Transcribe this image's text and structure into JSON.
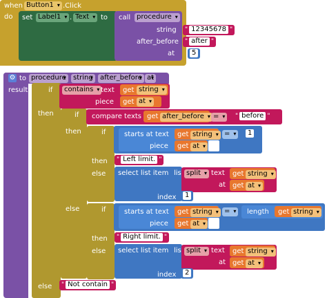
{
  "event": {
    "when": "when",
    "component": "Button1",
    "event_name": ".Click",
    "do": "do",
    "set": "set",
    "target": "Label1",
    "property": "Text",
    "to": "to",
    "call": "call",
    "procedure": "procedure",
    "arg1_label": "string",
    "arg1_value": "12345678",
    "arg2_label": "after_before",
    "arg2_value": "after",
    "arg3_label": "at",
    "arg3_value": "5"
  },
  "proc": {
    "to": "to",
    "name": "procedure",
    "param1": "string",
    "param2": "after_before",
    "param3": "at",
    "result": "result",
    "if": "if",
    "then": "then",
    "else": "else",
    "contains": "contains",
    "text": "text",
    "piece": "piece",
    "get": "get",
    "compare_texts": "compare texts",
    "eq": "=",
    "before": "before",
    "starts_at": "starts at",
    "one": "1",
    "left_limit": "Left limit.",
    "right_limit": "Right limit.",
    "select_list_item": "select list item",
    "list": "list",
    "split": "split",
    "at": "at",
    "index": "index",
    "two": "2",
    "length": "length",
    "not_contain": "Not contain"
  }
}
